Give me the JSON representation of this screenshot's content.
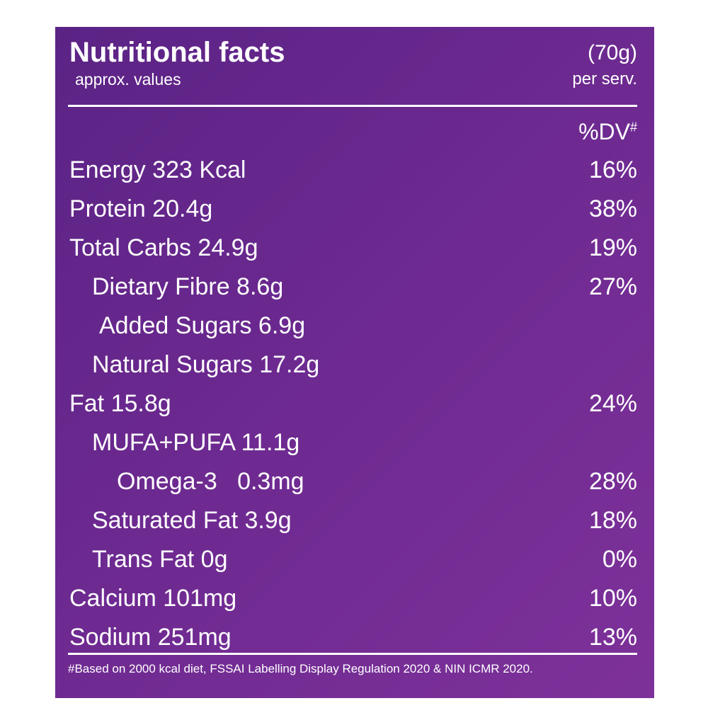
{
  "header": {
    "title": "Nutritional facts",
    "subtitle": "approx. values",
    "serving": "(70g)",
    "serving_note": "per serv."
  },
  "table": {
    "dv_header": "%DV",
    "dv_marker": "#",
    "rows": [
      {
        "label": "Energy 323 Kcal",
        "dv": "16%"
      },
      {
        "label": "Protein 20.4g",
        "dv": "38%"
      },
      {
        "label": "Total Carbs 24.9g",
        "dv": "19%"
      },
      {
        "label": "Dietary Fibre 8.6g",
        "dv": "27%"
      },
      {
        "label": "Added Sugars 6.9g"
      },
      {
        "label": "Natural Sugars 17.2g"
      },
      {
        "label": "Fat 15.8g",
        "dv": "24%"
      },
      {
        "label": "MUFA+PUFA 11.1g"
      },
      {
        "label": "Omega-3   0.3mg",
        "dv": "28%"
      },
      {
        "label": "Saturated Fat 3.9g",
        "dv": "18%"
      },
      {
        "label": "Trans Fat 0g",
        "dv": "0%"
      },
      {
        "label": "Calcium 101mg",
        "dv": "10%"
      },
      {
        "label": "Sodium 251mg",
        "dv": "13%"
      }
    ]
  },
  "footnote": "#Based on 2000 kcal diet, FSSAI Labelling Display Regulation 2020 & NIN ICMR 2020."
}
